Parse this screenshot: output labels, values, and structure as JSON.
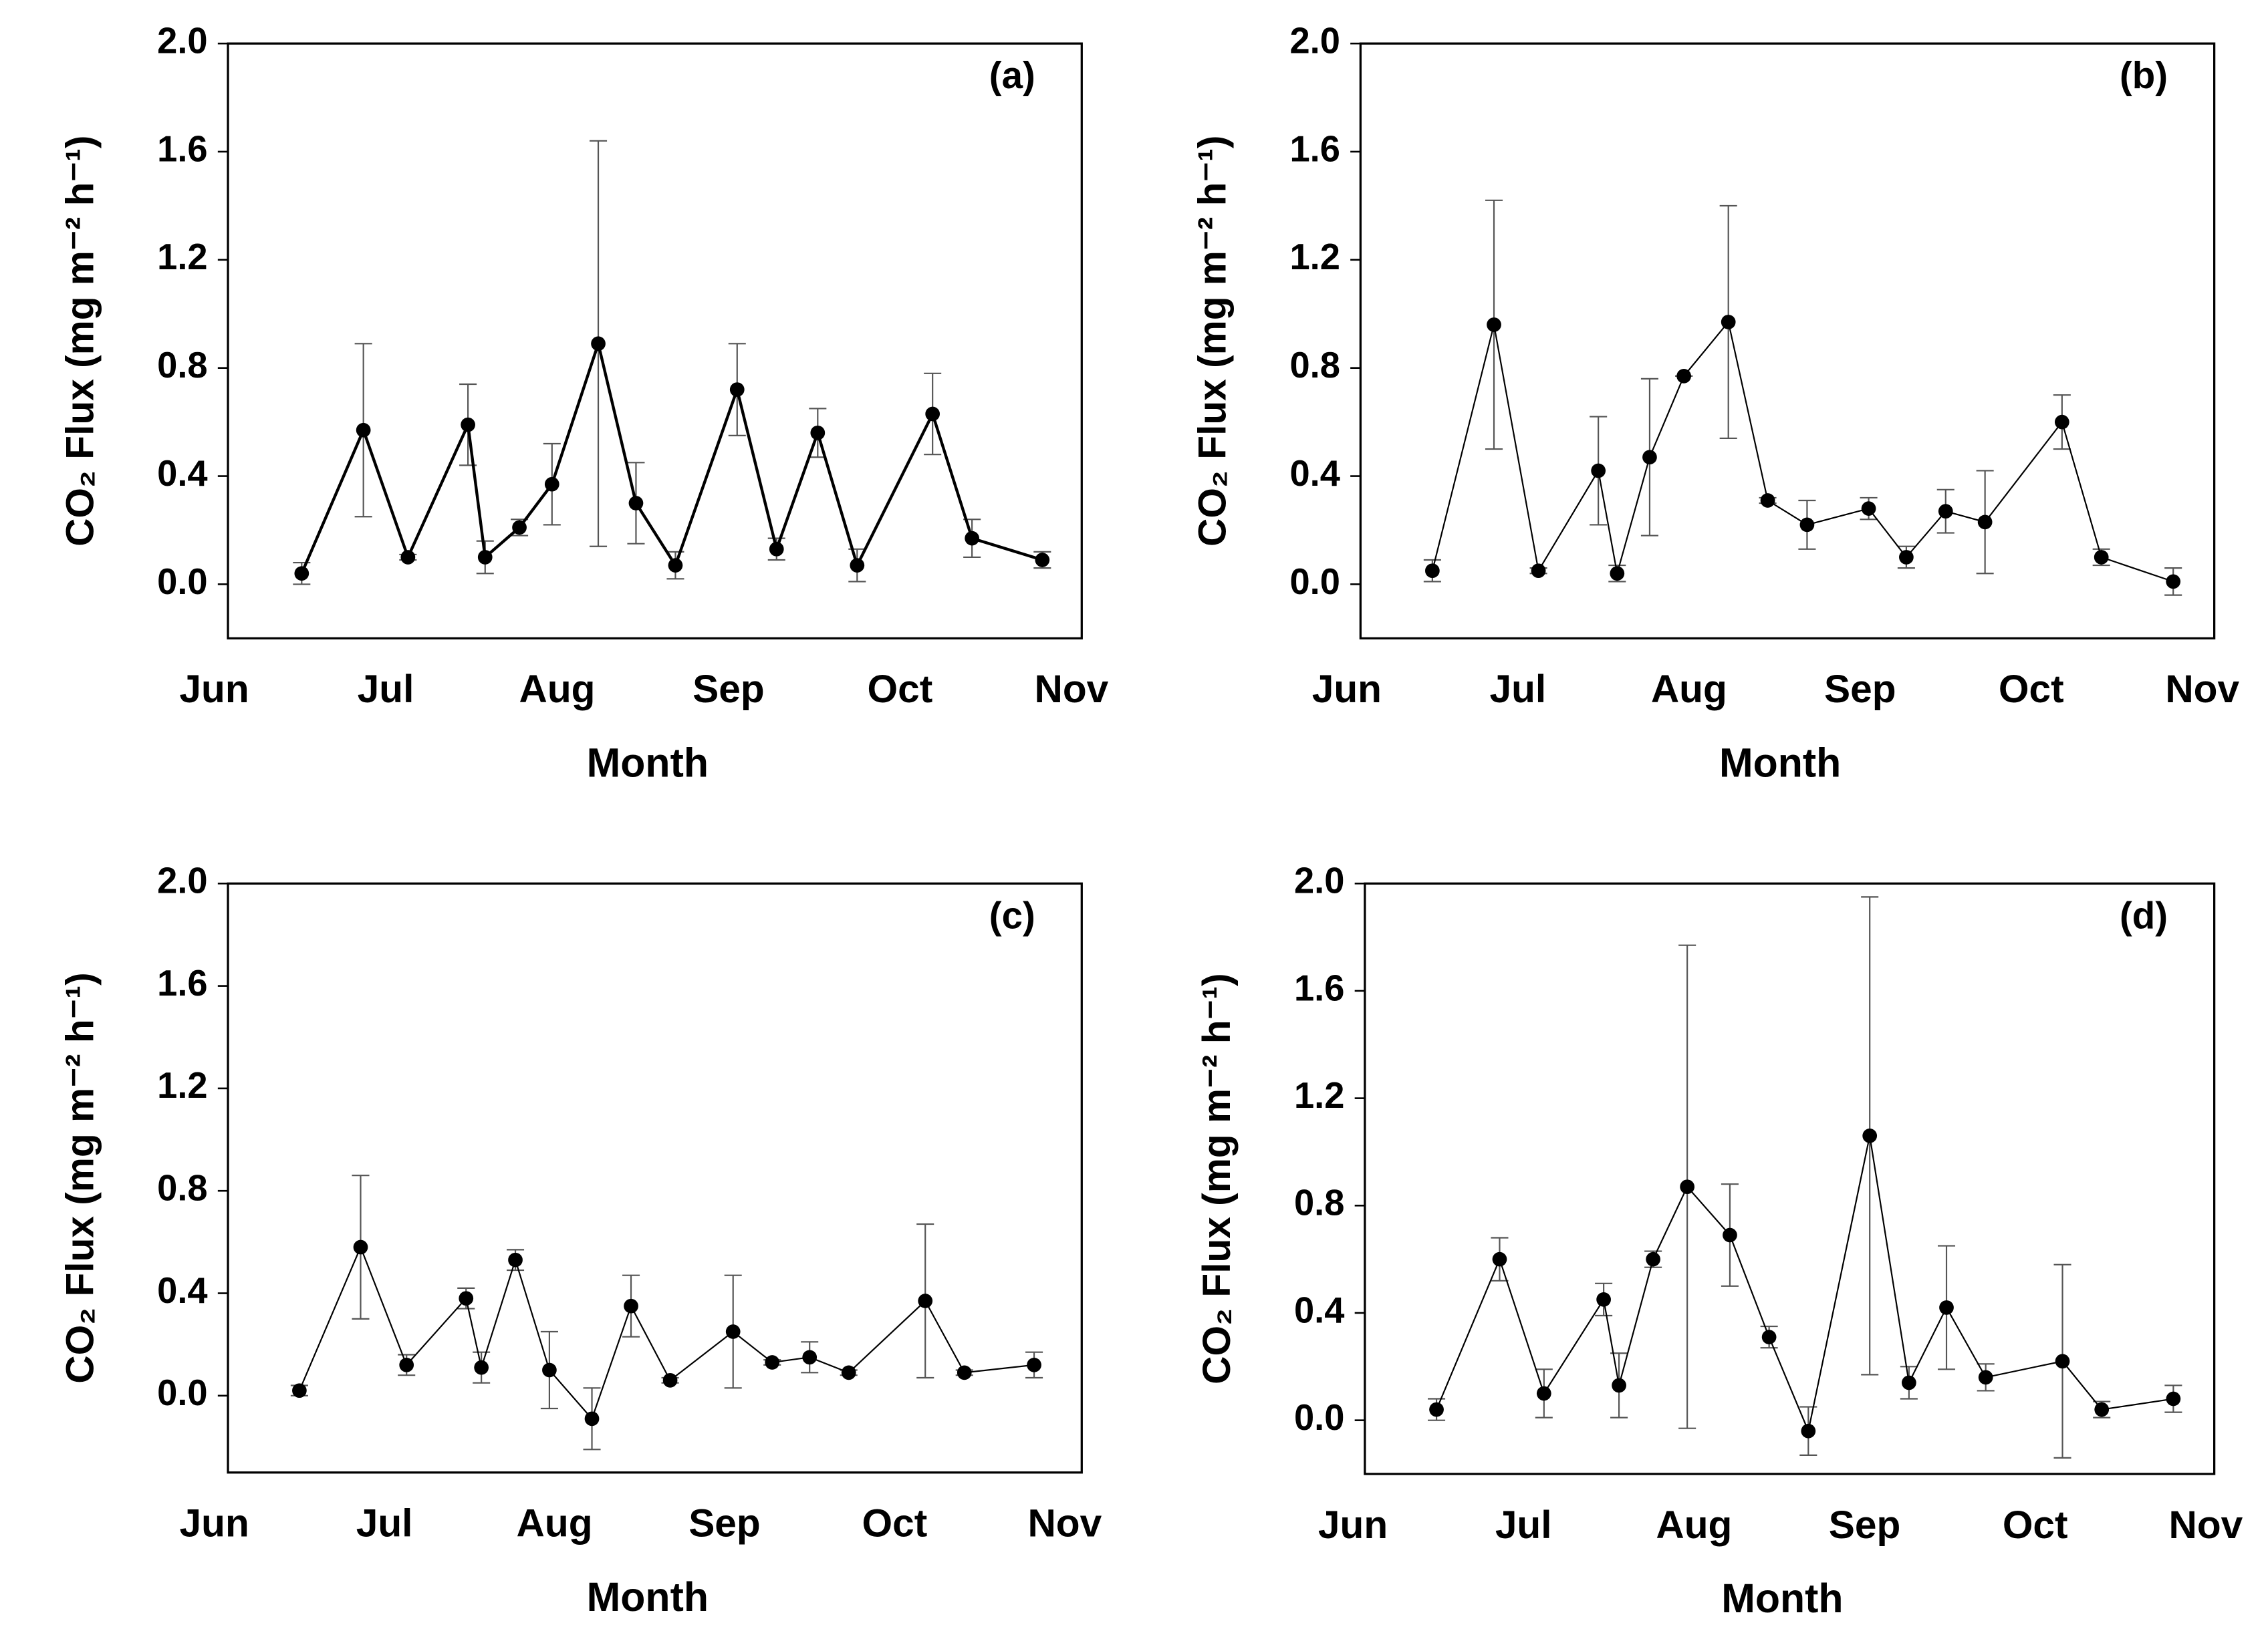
{
  "chart_data": [
    {
      "type": "line",
      "panel_label": "(a)",
      "xlabel": "Month",
      "ylabel": "CO₂ Flux (mg m⁻² h⁻¹)",
      "xlim": [
        0.08,
        5.06
      ],
      "ylim": [
        -0.2,
        2.0
      ],
      "xticks": [
        {
          "value": 0,
          "label": "Jun"
        },
        {
          "value": 1,
          "label": "Jul"
        },
        {
          "value": 2,
          "label": "Aug"
        },
        {
          "value": 3,
          "label": "Sep"
        },
        {
          "value": 4,
          "label": "Oct"
        },
        {
          "value": 5,
          "label": "Nov"
        }
      ],
      "yticks": [
        {
          "value": 0,
          "label": "0.0"
        },
        0.4,
        0.8,
        1.2,
        1.6,
        {
          "value": 2,
          "label": "2.0"
        }
      ],
      "color": "#000000",
      "line_width": 2,
      "x": [
        0.51,
        0.87,
        1.13,
        1.48,
        1.58,
        1.78,
        1.97,
        2.24,
        2.46,
        2.69,
        3.05,
        3.28,
        3.52,
        3.75,
        4.19,
        4.42,
        4.83
      ],
      "values": [
        0.04,
        0.57,
        0.1,
        0.59,
        0.1,
        0.21,
        0.37,
        0.89,
        0.3,
        0.07,
        0.72,
        0.13,
        0.56,
        0.07,
        0.63,
        0.17,
        0.09
      ],
      "errors": [
        0.04,
        0.32,
        0.01,
        0.15,
        0.06,
        0.03,
        0.15,
        0.75,
        0.15,
        0.05,
        0.17,
        0.04,
        0.09,
        0.06,
        0.15,
        0.07,
        0.03
      ]
    },
    {
      "type": "line",
      "panel_label": "(b)",
      "xlabel": "Month",
      "ylabel": "CO₂ Flux (mg m⁻² h⁻¹)",
      "xlim": [
        0.08,
        5.07
      ],
      "ylim": [
        -0.2,
        2.0
      ],
      "xticks": [
        {
          "value": 0,
          "label": "Jun"
        },
        {
          "value": 1,
          "label": "Jul"
        },
        {
          "value": 2,
          "label": "Aug"
        },
        {
          "value": 3,
          "label": "Sep"
        },
        {
          "value": 4,
          "label": "Oct"
        },
        {
          "value": 5,
          "label": "Nov"
        }
      ],
      "yticks": [
        {
          "value": 0,
          "label": "0.0"
        },
        0.4,
        0.8,
        1.2,
        1.6,
        {
          "value": 2,
          "label": "2.0"
        }
      ],
      "color": "#000000",
      "line_width": 1,
      "x": [
        0.5,
        0.86,
        1.12,
        1.47,
        1.58,
        1.77,
        1.97,
        2.23,
        2.46,
        2.69,
        3.05,
        3.27,
        3.5,
        3.73,
        4.18,
        4.41,
        4.83
      ],
      "values": [
        0.05,
        0.96,
        0.05,
        0.42,
        0.04,
        0.47,
        0.77,
        0.97,
        0.31,
        0.22,
        0.28,
        0.1,
        0.27,
        0.23,
        0.6,
        0.1,
        0.01
      ],
      "errors": [
        0.04,
        0.46,
        0.01,
        0.2,
        0.03,
        0.29,
        0,
        0.43,
        0.01,
        0.09,
        0.04,
        0.04,
        0.08,
        0.19,
        0.1,
        0.03,
        0.05
      ]
    },
    {
      "type": "line",
      "panel_label": "(c)",
      "xlabel": "Month",
      "ylabel": "CO₂ Flux (mg m⁻² h⁻¹)",
      "xlim": [
        0.08,
        5.1
      ],
      "ylim": [
        -0.3,
        2.0
      ],
      "xticks": [
        {
          "value": 0,
          "label": "Jun"
        },
        {
          "value": 1,
          "label": "Jul"
        },
        {
          "value": 2,
          "label": "Aug"
        },
        {
          "value": 3,
          "label": "Sep"
        },
        {
          "value": 4,
          "label": "Oct"
        },
        {
          "value": 5,
          "label": "Nov"
        }
      ],
      "yticks": [
        {
          "value": 0,
          "label": "0.0"
        },
        0.4,
        0.8,
        1.2,
        1.6,
        {
          "value": 2,
          "label": "2.0"
        }
      ],
      "color": "#000000",
      "line_width": 1,
      "x": [
        0.5,
        0.86,
        1.13,
        1.48,
        1.57,
        1.77,
        1.97,
        2.22,
        2.45,
        2.68,
        3.05,
        3.28,
        3.5,
        3.73,
        4.18,
        4.41,
        4.82
      ],
      "values": [
        0.02,
        0.58,
        0.12,
        0.38,
        0.11,
        0.53,
        0.1,
        -0.09,
        0.35,
        0.06,
        0.25,
        0.13,
        0.15,
        0.09,
        0.37,
        0.09,
        0.12
      ],
      "errors": [
        0.02,
        0.28,
        0.04,
        0.04,
        0.06,
        0.04,
        0.15,
        0.12,
        0.12,
        0.01,
        0.22,
        0.01,
        0.06,
        0.01,
        0.3,
        0.01,
        0.05
      ]
    },
    {
      "type": "line",
      "panel_label": "(d)",
      "xlabel": "Month",
      "ylabel": "CO₂ Flux (mg m⁻² h⁻¹)",
      "xlim": [
        0.07,
        5.05
      ],
      "ylim": [
        -0.2,
        2.0
      ],
      "xticks": [
        {
          "value": 0,
          "label": "Jun"
        },
        {
          "value": 1,
          "label": "Jul"
        },
        {
          "value": 2,
          "label": "Aug"
        },
        {
          "value": 3,
          "label": "Sep"
        },
        {
          "value": 4,
          "label": "Oct"
        },
        {
          "value": 5,
          "label": "Nov"
        }
      ],
      "yticks": [
        {
          "value": 0,
          "label": "0.0"
        },
        0.4,
        0.8,
        1.2,
        1.6,
        {
          "value": 2,
          "label": "2.0"
        }
      ],
      "color": "#000000",
      "line_width": 1,
      "x": [
        0.49,
        0.86,
        1.12,
        1.47,
        1.56,
        1.76,
        1.96,
        2.21,
        2.44,
        2.67,
        3.03,
        3.26,
        3.48,
        3.71,
        4.16,
        4.39,
        4.81
      ],
      "values": [
        0.04,
        0.6,
        0.1,
        0.45,
        0.13,
        0.6,
        0.87,
        0.69,
        0.31,
        -0.04,
        1.06,
        0.14,
        0.42,
        0.16,
        0.22,
        0.04,
        0.08
      ],
      "errors": [
        0.04,
        0.08,
        0.09,
        0.06,
        0.12,
        0.03,
        0.9,
        0.19,
        0.04,
        0.09,
        0.89,
        0.06,
        0.23,
        0.05,
        0.36,
        0.03,
        0.05
      ]
    }
  ]
}
